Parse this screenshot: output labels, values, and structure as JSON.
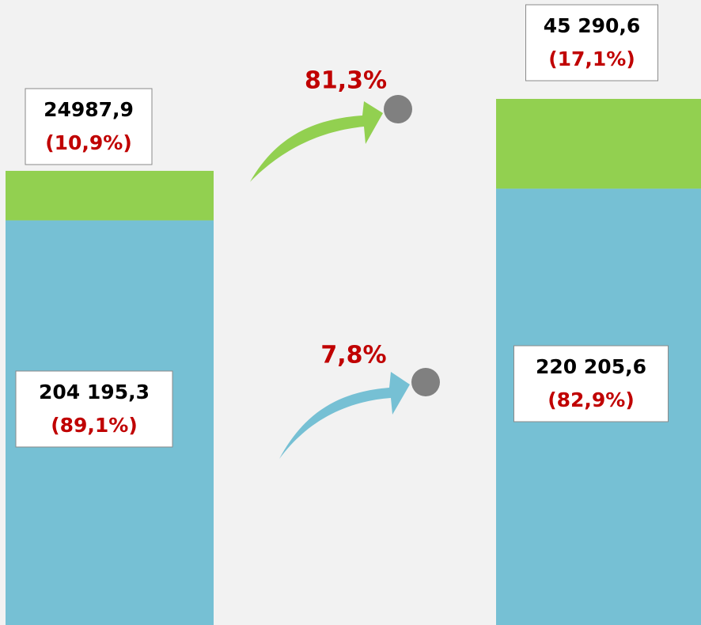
{
  "chart_data": {
    "type": "stacked-bar",
    "series": [
      {
        "color": "#76c0d4",
        "values": [
          204195.3,
          220205.6
        ],
        "value_labels": [
          "204 195,3",
          "220 205,6"
        ],
        "shares": [
          89.1,
          82.9
        ],
        "share_labels": [
          "(89,1%)",
          "(82,9%)"
        ],
        "growth": 7.8,
        "growth_label": "7,8%"
      },
      {
        "color": "#92d050",
        "values": [
          24987.9,
          45290.6
        ],
        "value_labels": [
          "24987,9",
          "45 290,6"
        ],
        "shares": [
          10.9,
          17.1
        ],
        "share_labels": [
          "(10,9%)",
          "(17,1%)"
        ],
        "growth": 81.3,
        "growth_label": "81,3%"
      }
    ]
  }
}
